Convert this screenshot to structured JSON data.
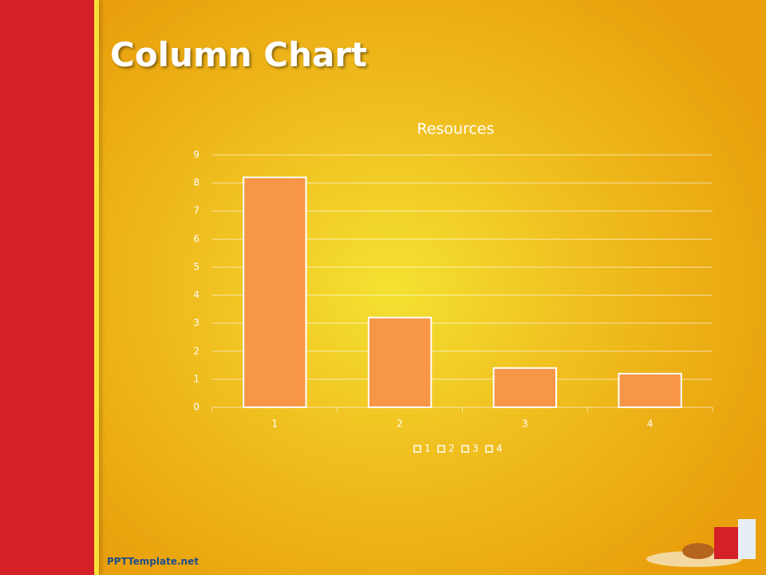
{
  "slide_title": "Column Chart",
  "footer": "PPTTemplate.net",
  "chart_data": {
    "type": "bar",
    "title": "Resources",
    "categories": [
      "1",
      "2",
      "3",
      "4"
    ],
    "values": [
      8.2,
      3.2,
      1.4,
      1.2
    ],
    "color": "#f79646",
    "ylim": [
      0,
      9
    ],
    "yticks": [
      0,
      1,
      2,
      3,
      4,
      5,
      6,
      7,
      8,
      9
    ],
    "grid": true,
    "legend": "bottom"
  }
}
